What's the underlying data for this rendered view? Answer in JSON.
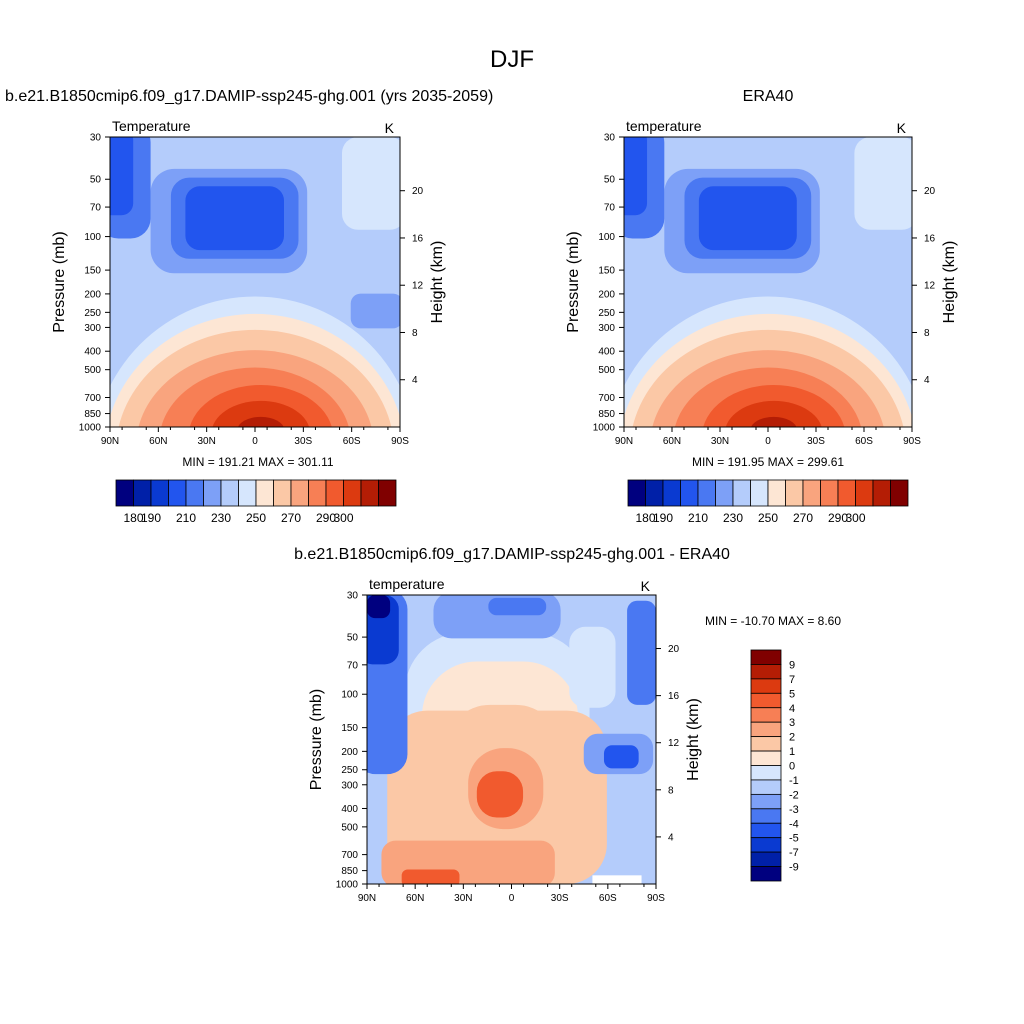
{
  "figure": {
    "title": "DJF"
  },
  "chart_data": [
    {
      "type": "heatmap",
      "panel_title": "b.e21.B1850cmip6.f09_g17.DAMIP-ssp245-ghg.001 (yrs 2035-2059)",
      "left_string": "Temperature",
      "right_string": "K",
      "ylabel": "Pressure (mb)",
      "ylabel_right": "Height (km)",
      "x_tick_labels": [
        "90N",
        "60N",
        "30N",
        "0",
        "30S",
        "60S",
        "90S"
      ],
      "y_tick_labels": [
        "30",
        "50",
        "70",
        "100",
        "150",
        "200",
        "250",
        "300",
        "400",
        "500",
        "700",
        "850",
        "1000"
      ],
      "y_tick_values": [
        30,
        50,
        70,
        100,
        150,
        200,
        250,
        300,
        400,
        500,
        700,
        850,
        1000
      ],
      "height_tick_labels": [
        "20",
        "16",
        "12",
        "8",
        "4"
      ],
      "height_tick_values": [
        20,
        16,
        12,
        8,
        4
      ],
      "stats": "MIN = 191.21   MAX = 301.11",
      "colorbar_labels": [
        "180",
        "190",
        "210",
        "230",
        "250",
        "270",
        "290",
        "300"
      ]
    },
    {
      "type": "heatmap",
      "panel_title": "ERA40",
      "left_string": "temperature",
      "right_string": "K",
      "ylabel": "Pressure (mb)",
      "ylabel_right": "Height (km)",
      "x_tick_labels": [
        "90N",
        "60N",
        "30N",
        "0",
        "30S",
        "60S",
        "90S"
      ],
      "y_tick_labels": [
        "30",
        "50",
        "70",
        "100",
        "150",
        "200",
        "250",
        "300",
        "400",
        "500",
        "700",
        "850",
        "1000"
      ],
      "y_tick_values": [
        30,
        50,
        70,
        100,
        150,
        200,
        250,
        300,
        400,
        500,
        700,
        850,
        1000
      ],
      "height_tick_labels": [
        "20",
        "16",
        "12",
        "8",
        "4"
      ],
      "height_tick_values": [
        20,
        16,
        12,
        8,
        4
      ],
      "stats": "MIN = 191.95   MAX = 299.61",
      "colorbar_labels": [
        "180",
        "190",
        "210",
        "230",
        "250",
        "270",
        "290",
        "300"
      ]
    },
    {
      "type": "heatmap",
      "panel_title": "b.e21.B1850cmip6.f09_g17.DAMIP-ssp245-ghg.001 - ERA40",
      "left_string": "temperature",
      "right_string": "K",
      "ylabel": "Pressure (mb)",
      "ylabel_right": "Height (km)",
      "x_tick_labels": [
        "90N",
        "60N",
        "30N",
        "0",
        "30S",
        "60S",
        "90S"
      ],
      "y_tick_labels": [
        "30",
        "50",
        "70",
        "100",
        "150",
        "200",
        "250",
        "300",
        "400",
        "500",
        "700",
        "850",
        "1000"
      ],
      "y_tick_values": [
        30,
        50,
        70,
        100,
        150,
        200,
        250,
        300,
        400,
        500,
        700,
        850,
        1000
      ],
      "height_tick_labels": [
        "20",
        "16",
        "12",
        "8",
        "4"
      ],
      "height_tick_values": [
        20,
        16,
        12,
        8,
        4
      ],
      "stats": "MIN = -10.70   MAX =    8.60",
      "colorbar_labels": [
        "9",
        "7",
        "5",
        "4",
        "3",
        "2",
        "1",
        "0",
        "-1",
        "-2",
        "-3",
        "-4",
        "-5",
        "-7",
        "-9"
      ]
    }
  ],
  "palette": [
    "#00007f",
    "#0020a8",
    "#0a3ad1",
    "#2255ee",
    "#4a78f2",
    "#7da0f7",
    "#b4ccfb",
    "#d6e6fd",
    "#fde6d4",
    "#fbc8a6",
    "#f9a47e",
    "#f77f55",
    "#f15a2e",
    "#dc3a10",
    "#b41d05",
    "#800000"
  ]
}
